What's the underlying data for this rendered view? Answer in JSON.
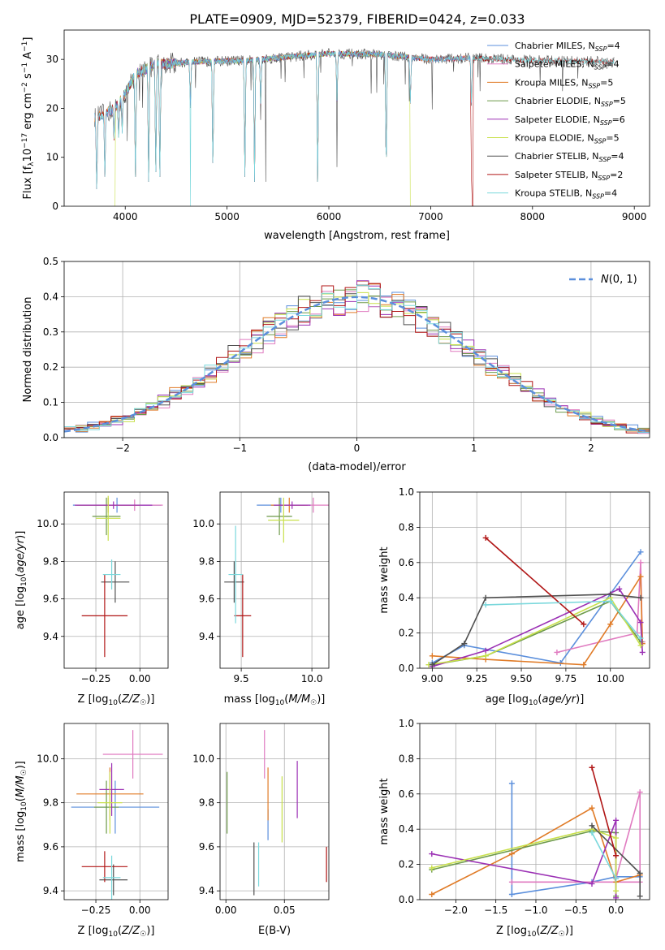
{
  "figure_title": "PLATE=0909, MJD=52379, FIBERID=0424, z=0.033",
  "colors": {
    "Chabrier MILES": "#5b8fdc",
    "Salpeter MILES": "#e07bc0",
    "Kroupa MILES": "#e07b27",
    "Chabrier ELODIE": "#6d9a4a",
    "Salpeter ELODIE": "#9b30b4",
    "Kroupa ELODIE": "#c8e04a",
    "Chabrier STELIB": "#505050",
    "Salpeter STELIB": "#b01515",
    "Kroupa STELIB": "#7ad8dc"
  },
  "chart_data": [
    {
      "id": "spectrum",
      "type": "line",
      "title": "PLATE=0909, MJD=52379, FIBERID=0424, z=0.033",
      "xlabel": "wavelength [Angstrom, rest frame]",
      "ylabel": "Flux [f_λ 10^-17 erg cm^-2 s^-1 A^-1]",
      "xlim": [
        3400,
        9150
      ],
      "ylim": [
        0,
        36
      ],
      "xticks": [
        4000,
        5000,
        6000,
        7000,
        8000,
        9000
      ],
      "yticks": [
        0,
        10,
        20,
        30
      ],
      "legend_position": "top-right",
      "series": [
        {
          "name": "Chabrier MILES, N_SSP=4",
          "range": [
            3700,
            7400
          ]
        },
        {
          "name": "Salpeter MILES, N_SSP=4",
          "range": [
            3700,
            7400
          ]
        },
        {
          "name": "Kroupa MILES, N_SSP=5",
          "range": [
            3700,
            7400
          ]
        },
        {
          "name": "Chabrier ELODIE, N_SSP=5",
          "range": [
            3900,
            6800
          ]
        },
        {
          "name": "Salpeter ELODIE, N_SSP=6",
          "range": [
            3900,
            6800
          ]
        },
        {
          "name": "Kroupa ELODIE, N_SSP=5",
          "range": [
            3900,
            6800
          ]
        },
        {
          "name": "Chabrier STELIB, N_SSP=4",
          "range": [
            3700,
            8800
          ]
        },
        {
          "name": "Salpeter STELIB, N_SSP=2",
          "range": [
            3700,
            8800
          ]
        },
        {
          "name": "Kroupa STELIB, N_SSP=4",
          "range": [
            3700,
            8800
          ]
        }
      ],
      "continuum": [
        [
          3700,
          18
        ],
        [
          3900,
          20
        ],
        [
          4000,
          23
        ],
        [
          4100,
          27
        ],
        [
          4300,
          29
        ],
        [
          4700,
          29.5
        ],
        [
          5200,
          29.8
        ],
        [
          6000,
          31.2
        ],
        [
          6500,
          31
        ],
        [
          7000,
          30
        ],
        [
          7400,
          30.3
        ],
        [
          8000,
          29.8
        ],
        [
          8500,
          29.6
        ],
        [
          8800,
          29.5
        ]
      ],
      "dips": [
        [
          3720,
          3.5
        ],
        [
          3800,
          6
        ],
        [
          3890,
          13
        ],
        [
          3935,
          22
        ],
        [
          3970,
          23
        ],
        [
          4100,
          6
        ],
        [
          4230,
          5
        ],
        [
          4300,
          7
        ],
        [
          4340,
          6
        ],
        [
          4640,
          30
        ],
        [
          4861,
          7
        ],
        [
          5175,
          6
        ],
        [
          5270,
          5
        ],
        [
          5330,
          22
        ],
        [
          5890,
          5
        ],
        [
          6080,
          24
        ],
        [
          6563,
          6
        ],
        [
          6800,
          30
        ],
        [
          7400,
          30
        ]
      ]
    },
    {
      "id": "residuals",
      "type": "histogram",
      "xlabel": "(data-model)/error",
      "ylabel": "Normed distribution",
      "xlim": [
        -2.5,
        2.5
      ],
      "ylim": [
        0,
        0.5
      ],
      "xticks": [
        -2,
        -1,
        0,
        1,
        2
      ],
      "xticklabels": [
        "−2",
        "−1",
        "0",
        "1",
        "2"
      ],
      "yticks": [
        0.0,
        0.1,
        0.2,
        0.3,
        0.4,
        0.5
      ],
      "bin_width": 0.1,
      "legend": "N(0,1)",
      "legend_position": "top-right"
    },
    {
      "id": "age_vs_Z",
      "type": "errorbar",
      "xlabel": "Z [log10(Z/Z☉)]",
      "ylabel": "age [log10(age/yr)]",
      "xlim": [
        -0.43,
        0.16
      ],
      "ylim": [
        9.23,
        10.17
      ],
      "xticks": [
        -0.25,
        0.0
      ],
      "yticks": [
        9.4,
        9.6,
        9.8,
        10.0
      ],
      "points": [
        {
          "model": "Chabrier MILES",
          "x": -0.13,
          "y": 10.1,
          "xerr": 0.25,
          "yerr": 0.04
        },
        {
          "model": "Salpeter MILES",
          "x": -0.03,
          "y": 10.1,
          "xerr": 0.16,
          "yerr": 0.03
        },
        {
          "model": "Kroupa MILES",
          "x": -0.18,
          "y": 10.1,
          "xerr": 0.18,
          "yerr": 0.04
        },
        {
          "model": "Chabrier ELODIE",
          "x": -0.19,
          "y": 10.04,
          "xerr": 0.08,
          "yerr": 0.1
        },
        {
          "model": "Salpeter ELODIE",
          "x": -0.15,
          "y": 10.1,
          "xerr": 0.22,
          "yerr": 0.02
        },
        {
          "model": "Kroupa ELODIE",
          "x": -0.18,
          "y": 10.03,
          "xerr": 0.07,
          "yerr": 0.12
        },
        {
          "model": "Chabrier STELIB",
          "x": -0.14,
          "y": 9.69,
          "xerr": 0.08,
          "yerr": 0.11
        },
        {
          "model": "Salpeter STELIB",
          "x": -0.2,
          "y": 9.51,
          "xerr": 0.13,
          "yerr": 0.22
        },
        {
          "model": "Kroupa STELIB",
          "x": -0.16,
          "y": 9.73,
          "xerr": 0.05,
          "yerr": 0.08
        }
      ]
    },
    {
      "id": "age_vs_mass",
      "type": "errorbar",
      "xlabel": "mass [log10(M/M☉)]",
      "ylabel": "",
      "xlim": [
        9.35,
        10.12
      ],
      "ylim": [
        9.23,
        10.17
      ],
      "xticks": [
        9.5,
        10.0
      ],
      "yticks": [
        9.4,
        9.6,
        9.8,
        10.0
      ],
      "points": [
        {
          "model": "Chabrier MILES",
          "x": 9.78,
          "y": 10.1,
          "xerr": 0.17,
          "yerr": 0.04
        },
        {
          "model": "Salpeter MILES",
          "x": 10.01,
          "y": 10.1,
          "xerr": 0.14,
          "yerr": 0.04
        },
        {
          "model": "Kroupa MILES",
          "x": 9.84,
          "y": 10.1,
          "xerr": 0.13,
          "yerr": 0.04
        },
        {
          "model": "Chabrier ELODIE",
          "x": 9.77,
          "y": 10.04,
          "xerr": 0.09,
          "yerr": 0.1
        },
        {
          "model": "Salpeter ELODIE",
          "x": 9.86,
          "y": 10.1,
          "xerr": 0.13,
          "yerr": 0.02
        },
        {
          "model": "Kroupa ELODIE",
          "x": 9.8,
          "y": 10.02,
          "xerr": 0.11,
          "yerr": 0.12
        },
        {
          "model": "Chabrier STELIB",
          "x": 9.45,
          "y": 9.69,
          "xerr": 0.07,
          "yerr": 0.11
        },
        {
          "model": "Salpeter STELIB",
          "x": 9.51,
          "y": 9.51,
          "xerr": 0.06,
          "yerr": 0.22
        },
        {
          "model": "Kroupa STELIB",
          "x": 9.46,
          "y": 9.73,
          "xerr": 0.05,
          "yerr": 0.26
        }
      ]
    },
    {
      "id": "mass_weight_vs_age",
      "type": "line",
      "xlabel": "age [log10(age/yr)]",
      "ylabel": "mass weight",
      "xlim": [
        8.93,
        10.22
      ],
      "ylim": [
        0,
        1
      ],
      "xticks": [
        9.0,
        9.25,
        9.5,
        9.75,
        10.0
      ],
      "yticks": [
        0.0,
        0.2,
        0.4,
        0.6,
        0.8,
        1.0
      ],
      "series": [
        {
          "model": "Chabrier MILES",
          "x": [
            9.0,
            9.18,
            9.72,
            10.17
          ],
          "y": [
            0.03,
            0.13,
            0.03,
            0.66
          ]
        },
        {
          "model": "Salpeter MILES",
          "x": [
            9.7,
            10.15,
            10.17,
            10.18
          ],
          "y": [
            0.09,
            0.2,
            0.6,
            0.15
          ]
        },
        {
          "model": "Kroupa MILES",
          "x": [
            9.0,
            9.3,
            9.85,
            10.0,
            10.17,
            10.18
          ],
          "y": [
            0.07,
            0.05,
            0.02,
            0.25,
            0.52,
            0.14
          ]
        },
        {
          "model": "Chabrier ELODIE",
          "x": [
            9.0,
            9.3,
            10.0,
            10.17
          ],
          "y": [
            0.02,
            0.07,
            0.38,
            0.15
          ]
        },
        {
          "model": "Salpeter ELODIE",
          "x": [
            9.0,
            9.3,
            10.05,
            10.17,
            10.18
          ],
          "y": [
            0.01,
            0.1,
            0.45,
            0.26,
            0.09
          ]
        },
        {
          "model": "Kroupa ELODIE",
          "x": [
            8.98,
            9.3,
            10.0,
            10.17
          ],
          "y": [
            0.02,
            0.07,
            0.4,
            0.13
          ]
        },
        {
          "model": "Chabrier STELIB",
          "x": [
            9.0,
            9.18,
            9.3,
            10.0,
            10.17
          ],
          "y": [
            0.02,
            0.14,
            0.4,
            0.42,
            0.4
          ]
        },
        {
          "model": "Salpeter STELIB",
          "x": [
            9.3,
            9.85
          ],
          "y": [
            0.74,
            0.25
          ]
        },
        {
          "model": "Kroupa STELIB",
          "x": [
            9.3,
            10.0,
            10.17
          ],
          "y": [
            0.36,
            0.38,
            0.17
          ]
        }
      ]
    },
    {
      "id": "mass_vs_Z",
      "type": "errorbar",
      "xlabel": "Z [log10(Z/Z☉)]",
      "ylabel": "mass [log10(M/M☉)]",
      "xlim": [
        -0.43,
        0.16
      ],
      "ylim": [
        9.36,
        10.16
      ],
      "xticks": [
        -0.25,
        0.0
      ],
      "yticks": [
        9.4,
        9.6,
        9.8,
        10.0
      ],
      "points": [
        {
          "model": "Chabrier MILES",
          "x": -0.14,
          "y": 9.78,
          "xerr": 0.25,
          "yerr": 0.12
        },
        {
          "model": "Salpeter MILES",
          "x": -0.04,
          "y": 10.02,
          "xerr": 0.17,
          "yerr": 0.11
        },
        {
          "model": "Kroupa MILES",
          "x": -0.17,
          "y": 9.84,
          "xerr": 0.19,
          "yerr": 0.12
        },
        {
          "model": "Chabrier ELODIE",
          "x": -0.19,
          "y": 9.78,
          "xerr": 0.07,
          "yerr": 0.12
        },
        {
          "model": "Salpeter ELODIE",
          "x": -0.16,
          "y": 9.86,
          "xerr": 0.07,
          "yerr": 0.12
        },
        {
          "model": "Kroupa ELODIE",
          "x": -0.17,
          "y": 9.8,
          "xerr": 0.07,
          "yerr": 0.14
        },
        {
          "model": "Chabrier STELIB",
          "x": -0.15,
          "y": 9.45,
          "xerr": 0.08,
          "yerr": 0.07
        },
        {
          "model": "Salpeter STELIB",
          "x": -0.2,
          "y": 9.51,
          "xerr": 0.13,
          "yerr": 0.07
        },
        {
          "model": "Kroupa STELIB",
          "x": -0.16,
          "y": 9.46,
          "xerr": 0.05,
          "yerr": 0.1
        }
      ]
    },
    {
      "id": "mass_vs_EBV",
      "type": "errorbar",
      "xlabel": "E(B-V)",
      "ylabel": "",
      "xlim": [
        -0.005,
        0.088
      ],
      "ylim": [
        9.36,
        10.16
      ],
      "xticks": [
        0.0,
        0.05
      ],
      "xticklabels": [
        "0.00",
        "0.05"
      ],
      "yticks": [
        9.4,
        9.6,
        9.8,
        10.0
      ],
      "points": [
        {
          "model": "Chabrier MILES",
          "x": 0.036,
          "y": 9.7,
          "xerr": 0,
          "yerr": 0.07
        },
        {
          "model": "Salpeter MILES",
          "x": 0.033,
          "y": 10.02,
          "xerr": 0,
          "yerr": 0.11
        },
        {
          "model": "Kroupa MILES",
          "x": 0.036,
          "y": 9.84,
          "xerr": 0,
          "yerr": 0.12
        },
        {
          "model": "Chabrier ELODIE",
          "x": 0.001,
          "y": 9.8,
          "xerr": 0,
          "yerr": 0.14
        },
        {
          "model": "Salpeter ELODIE",
          "x": 0.061,
          "y": 9.86,
          "xerr": 0,
          "yerr": 0.13
        },
        {
          "model": "Kroupa ELODIE",
          "x": 0.048,
          "y": 9.77,
          "xerr": 0,
          "yerr": 0.15
        },
        {
          "model": "Chabrier STELIB",
          "x": 0.024,
          "y": 9.5,
          "xerr": 0,
          "yerr": 0.12
        },
        {
          "model": "Salpeter STELIB",
          "x": 0.086,
          "y": 9.52,
          "xerr": 0,
          "yerr": 0.08
        },
        {
          "model": "Kroupa STELIB",
          "x": 0.028,
          "y": 9.52,
          "xerr": 0,
          "yerr": 0.1
        }
      ]
    },
    {
      "id": "mass_weight_vs_Z",
      "type": "line",
      "xlabel": "Z [log10(Z/Z☉)]",
      "ylabel": "mass weight",
      "xlim": [
        -2.45,
        0.42
      ],
      "ylim": [
        0,
        1
      ],
      "xticks": [
        -2.0,
        -1.5,
        -1.0,
        -0.5,
        0.0
      ],
      "xticklabels": [
        "−2.0",
        "−1.5",
        "−1.0",
        "−0.5",
        "0.0"
      ],
      "yticks": [
        0.0,
        0.2,
        0.4,
        0.6,
        0.8,
        1.0
      ],
      "series": [
        {
          "model": "Chabrier MILES",
          "x": [
            -1.3,
            -1.3,
            -0.3,
            0.0,
            0.3
          ],
          "y": [
            0.66,
            0.03,
            0.1,
            0.13,
            0.13
          ]
        },
        {
          "model": "Salpeter MILES",
          "x": [
            -1.3,
            0.3,
            0.3,
            0.0
          ],
          "y": [
            0.1,
            0.1,
            0.61,
            0.12
          ]
        },
        {
          "model": "Kroupa MILES",
          "x": [
            -2.3,
            -1.3,
            -0.3,
            0.0,
            0.3
          ],
          "y": [
            0.03,
            0.26,
            0.52,
            0.1,
            0.14
          ]
        },
        {
          "model": "Chabrier ELODIE",
          "x": [
            -2.3,
            -0.3,
            0.0,
            0.0
          ],
          "y": [
            0.17,
            0.39,
            0.38,
            0.02
          ]
        },
        {
          "model": "Salpeter ELODIE",
          "x": [
            -2.3,
            -0.3,
            0.0,
            0.0
          ],
          "y": [
            0.26,
            0.09,
            0.45,
            0.01
          ]
        },
        {
          "model": "Kroupa ELODIE",
          "x": [
            -2.3,
            -0.3,
            0.0,
            0.0
          ],
          "y": [
            0.18,
            0.4,
            0.35,
            0.05
          ]
        },
        {
          "model": "Chabrier STELIB",
          "x": [
            -0.3,
            0.3,
            0.3
          ],
          "y": [
            0.42,
            0.15,
            0.02
          ]
        },
        {
          "model": "Salpeter STELIB",
          "x": [
            -0.3,
            0.0
          ],
          "y": [
            0.75,
            0.25
          ]
        },
        {
          "model": "Kroupa STELIB",
          "x": [
            -0.3,
            0.0
          ],
          "y": [
            0.38,
            0.12
          ]
        }
      ]
    }
  ]
}
